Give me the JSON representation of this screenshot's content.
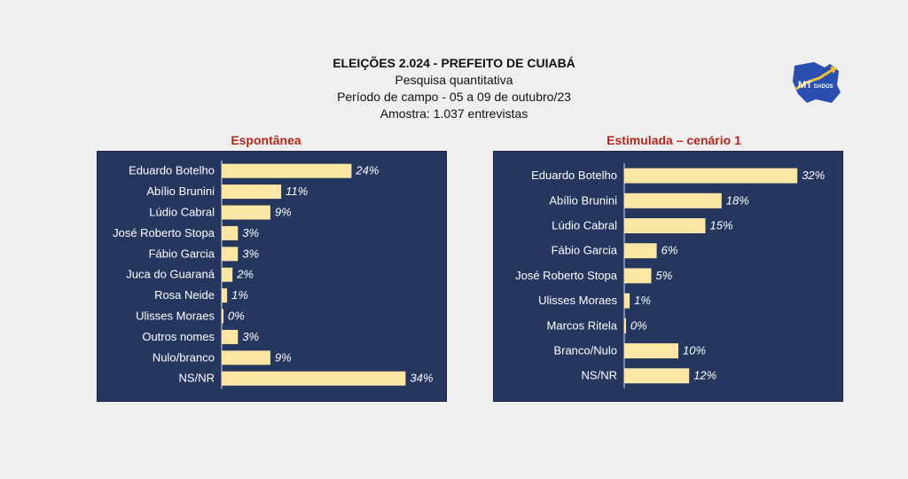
{
  "header": {
    "title": "ELEIÇÕES 2.024  -  PREFEITO DE CUIABÁ",
    "subtitle": "Pesquisa quantitativa",
    "period": "Período de campo - 05 a 09 de outubro/23",
    "sample": "Amostra: 1.037 entrevistas"
  },
  "logo": {
    "text_main": "MT",
    "text_sub": "DADOS",
    "icon": "mt-dados-logo"
  },
  "colors": {
    "panel": "#25365f",
    "bar": "#fbe6a4",
    "panel_title": "#b3261e"
  },
  "chart_data": [
    {
      "type": "bar",
      "orientation": "horizontal",
      "title": "Espontânea",
      "categories": [
        "Eduardo Botelho",
        "Abílio Brunini",
        "Lúdio Cabral",
        "José Roberto Stopa",
        "Fábio Garcia",
        "Juca do Guaraná",
        "Rosa Neide",
        "Ulisses Moraes",
        "Outros nomes",
        "Nulo/branco",
        "NS/NR"
      ],
      "values": [
        24,
        11,
        9,
        3,
        3,
        2,
        1,
        0,
        3,
        9,
        34
      ],
      "labels": [
        "24%",
        "11%",
        "9%",
        "3%",
        "3%",
        "2%",
        "1%",
        "0%",
        "3%",
        "9%",
        "34%"
      ],
      "unit": "%"
    },
    {
      "type": "bar",
      "orientation": "horizontal",
      "title": "Estimulada – cenário 1",
      "categories": [
        "Eduardo Botelho",
        "Abílio Brunini",
        "Lúdio Cabral",
        "Fábio Garcia",
        "José Roberto Stopa",
        "Ulisses Moraes",
        "Marcos Ritela",
        "Branco/Nulo",
        "NS/NR"
      ],
      "values": [
        32,
        18,
        15,
        6,
        5,
        1,
        0,
        10,
        12
      ],
      "labels": [
        "32%",
        "18%",
        "15%",
        "6%",
        "5%",
        "1%",
        "0%",
        "10%",
        "12%"
      ],
      "unit": "%"
    }
  ]
}
